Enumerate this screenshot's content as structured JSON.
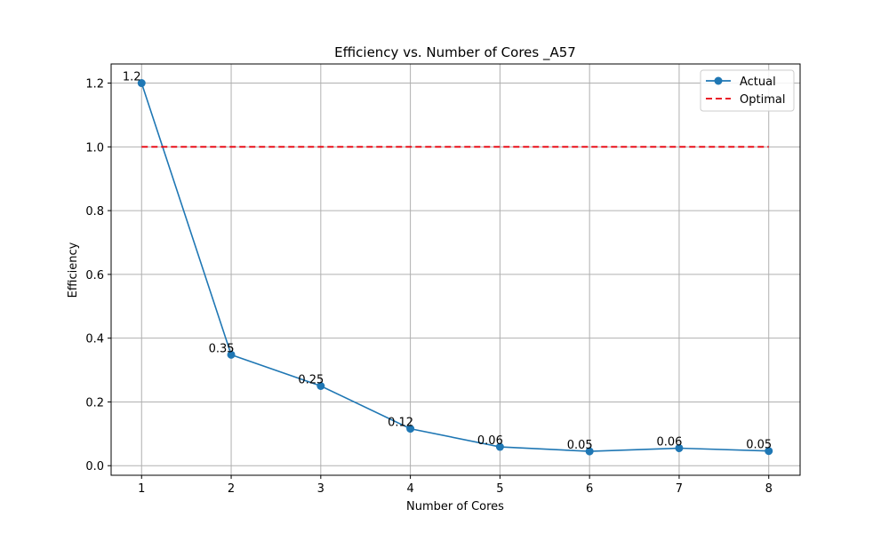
{
  "chart_data": {
    "type": "line",
    "title": "Efficiency vs. Number of Cores _A57",
    "xlabel": "Number of Cores",
    "ylabel": "Efficiency",
    "x": [
      1,
      2,
      3,
      4,
      5,
      6,
      7,
      8
    ],
    "xticks": [
      "1",
      "2",
      "3",
      "4",
      "5",
      "6",
      "7",
      "8"
    ],
    "yticks": [
      "0.0",
      "0.2",
      "0.4",
      "0.6",
      "0.8",
      "1.0",
      "1.2"
    ],
    "xlim": [
      0.66,
      8.35
    ],
    "ylim": [
      -0.03,
      1.26
    ],
    "grid": true,
    "legend_position": "top-right",
    "series": [
      {
        "name": "Actual",
        "style": "solid-with-markers",
        "color": "#1f77b4",
        "values": [
          1.2,
          0.348,
          0.25,
          0.116,
          0.059,
          0.045,
          0.055,
          0.046
        ],
        "labels": [
          "1.2",
          "0.35",
          "0.25",
          "0.12",
          "0.06",
          "0.05",
          "0.06",
          "0.05"
        ]
      },
      {
        "name": "Optimal",
        "style": "dashed",
        "color": "#e8000b",
        "values": [
          1.0,
          1.0,
          1.0,
          1.0,
          1.0,
          1.0,
          1.0,
          1.0
        ]
      }
    ]
  }
}
